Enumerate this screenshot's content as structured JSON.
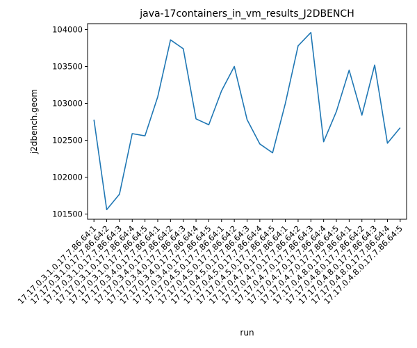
{
  "chart_data": {
    "type": "line",
    "title": "java-17containers_in_vm_results_J2DBENCH",
    "xlabel": "run",
    "ylabel": "j2dbench.geom",
    "ylim": [
      101430,
      104080
    ],
    "yticks": [
      101500,
      102000,
      102500,
      103000,
      103500,
      104000
    ],
    "categories": [
      "17.17.0.3.1.0.17.7.86.64:1",
      "17.17.0.3.1.0.17.7.86.64:2",
      "17.17.0.3.1.0.17.7.86.64:3",
      "17.17.0.3.1.0.17.7.86.64:4",
      "17.17.0.3.1.0.17.7.86.64:5",
      "17.17.0.3.4.0.17.7.86.64:1",
      "17.17.0.3.4.0.17.7.86.64:2",
      "17.17.0.3.4.0.17.7.86.64:3",
      "17.17.0.3.4.0.17.7.86.64:4",
      "17.17.0.3.4.0.17.7.86.64:5",
      "17.17.0.4.5.0.17.7.86.64:1",
      "17.17.0.4.5.0.17.7.86.64:2",
      "17.17.0.4.5.0.17.7.86.64:3",
      "17.17.0.4.5.0.17.7.86.64:4",
      "17.17.0.4.5.0.17.7.86.64:5",
      "17.17.0.4.7.0.17.7.86.64:1",
      "17.17.0.4.7.0.17.7.86.64:2",
      "17.17.0.4.7.0.17.7.86.64:3",
      "17.17.0.4.7.0.17.7.86.64:4",
      "17.17.0.4.7.0.17.7.86.64:5",
      "17.17.0.4.8.0.17.7.86.64:1",
      "17.17.0.4.8.0.17.7.86.64:2",
      "17.17.0.4.8.0.17.7.86.64:3",
      "17.17.0.4.8.0.17.7.86.64:4",
      "17.17.0.4.8.0.17.7.86.64:5"
    ],
    "series": [
      {
        "color": "#1f77b4",
        "values": [
          102780,
          101560,
          101770,
          102590,
          102560,
          103090,
          103860,
          103740,
          102790,
          102710,
          103170,
          103500,
          102780,
          102450,
          102330,
          103000,
          103780,
          103960,
          102480,
          102890,
          103450,
          102840,
          103520,
          102460,
          102670
        ]
      }
    ],
    "grid": false,
    "legend": "none"
  }
}
